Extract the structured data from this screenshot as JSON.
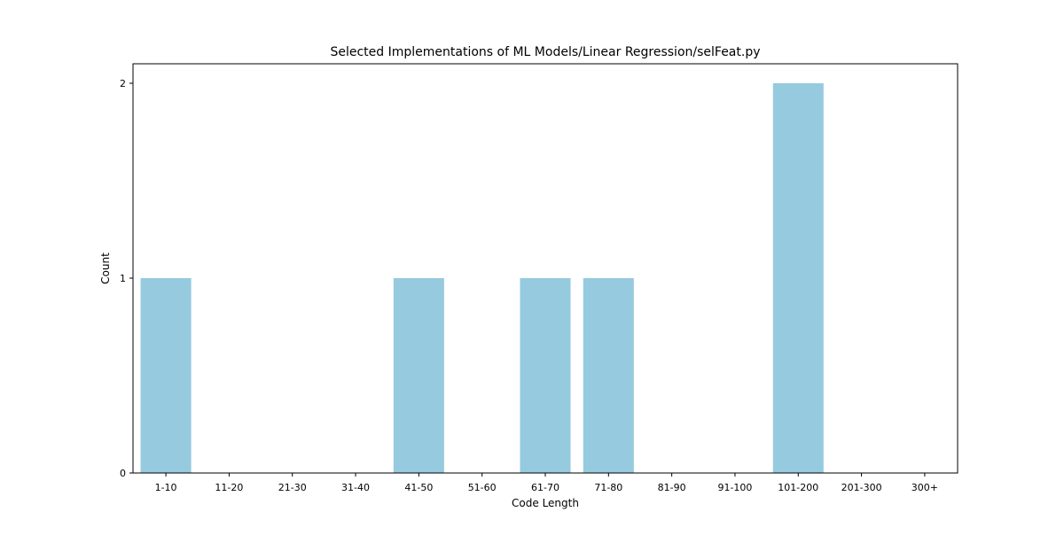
{
  "chart_data": {
    "type": "bar",
    "title": "Selected Implementations of ML Models/Linear Regression/selFeat.py",
    "xlabel": "Code Length",
    "ylabel": "Count",
    "categories": [
      "1-10",
      "11-20",
      "21-30",
      "31-40",
      "41-50",
      "51-60",
      "61-70",
      "71-80",
      "81-90",
      "91-100",
      "101-200",
      "201-300",
      "300+"
    ],
    "values": [
      1,
      0,
      0,
      0,
      1,
      0,
      1,
      1,
      0,
      0,
      2,
      0,
      0
    ],
    "yticks": [
      0,
      1,
      2
    ],
    "ylim": [
      0,
      2.1
    ],
    "grid": false,
    "bar_color": "#96cadf"
  }
}
